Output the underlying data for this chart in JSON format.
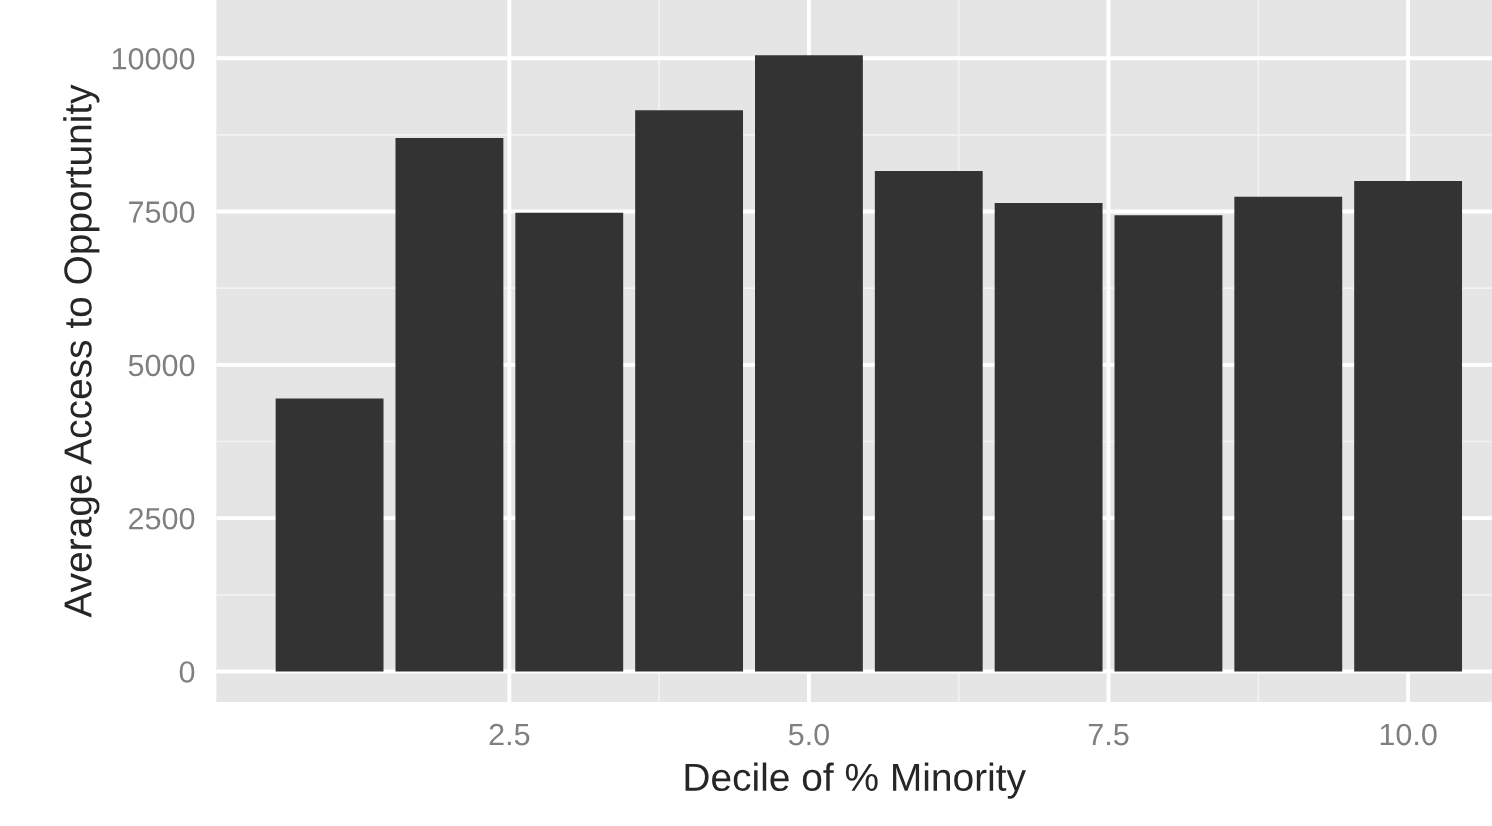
{
  "chart_data": {
    "type": "bar",
    "xlabel": "Decile of % Minority",
    "ylabel": "Average Access to Opportunity",
    "x": [
      1,
      2,
      3,
      4,
      5,
      6,
      7,
      8,
      9,
      10
    ],
    "values": [
      4450,
      8700,
      7480,
      9150,
      10050,
      8160,
      7640,
      7440,
      7740,
      8000
    ],
    "color": "#333333",
    "xlim": [
      0.055,
      10.7
    ],
    "ylim": [
      -500,
      10950
    ],
    "xticks": [
      2.5,
      {
        "value": 5,
        "label": "5.0"
      },
      7.5,
      {
        "value": 10,
        "label": "10.0"
      }
    ],
    "yticks": [
      0,
      2500,
      5000,
      7500,
      10000
    ],
    "grid": true
  }
}
